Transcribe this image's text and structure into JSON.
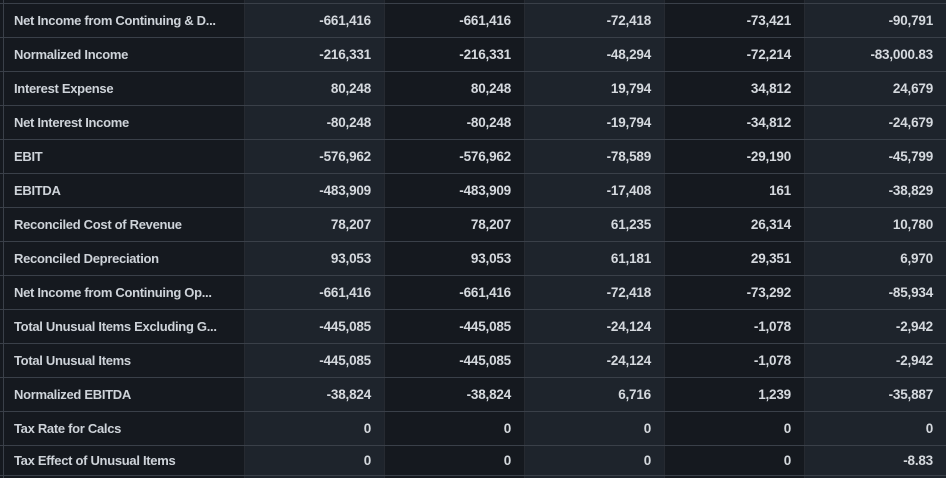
{
  "colors": {
    "background_dark_cell": "#15191f",
    "background_light_cell": "#1e242c",
    "row_border": "#3a4049",
    "column_border": "#262a31",
    "number_text": "#d5d9de",
    "label_text": "#ced3d9"
  },
  "table": {
    "column_count": 5,
    "rows": [
      {
        "label": "Net Income from Continuing & D...",
        "values": [
          "-661,416",
          "-661,416",
          "-72,418",
          "-73,421",
          "-90,791"
        ]
      },
      {
        "label": "Normalized Income",
        "values": [
          "-216,331",
          "-216,331",
          "-48,294",
          "-72,214",
          "-83,000.83"
        ]
      },
      {
        "label": "Interest Expense",
        "values": [
          "80,248",
          "80,248",
          "19,794",
          "34,812",
          "24,679"
        ]
      },
      {
        "label": "Net Interest Income",
        "values": [
          "-80,248",
          "-80,248",
          "-19,794",
          "-34,812",
          "-24,679"
        ]
      },
      {
        "label": "EBIT",
        "values": [
          "-576,962",
          "-576,962",
          "-78,589",
          "-29,190",
          "-45,799"
        ]
      },
      {
        "label": "EBITDA",
        "values": [
          "-483,909",
          "-483,909",
          "-17,408",
          "161",
          "-38,829"
        ]
      },
      {
        "label": "Reconciled Cost of Revenue",
        "values": [
          "78,207",
          "78,207",
          "61,235",
          "26,314",
          "10,780"
        ]
      },
      {
        "label": "Reconciled Depreciation",
        "values": [
          "93,053",
          "93,053",
          "61,181",
          "29,351",
          "6,970"
        ]
      },
      {
        "label": "Net Income from Continuing Op...",
        "values": [
          "-661,416",
          "-661,416",
          "-72,418",
          "-73,292",
          "-85,934"
        ]
      },
      {
        "label": "Total Unusual Items Excluding G...",
        "values": [
          "-445,085",
          "-445,085",
          "-24,124",
          "-1,078",
          "-2,942"
        ]
      },
      {
        "label": "Total Unusual Items",
        "values": [
          "-445,085",
          "-445,085",
          "-24,124",
          "-1,078",
          "-2,942"
        ]
      },
      {
        "label": "Normalized EBITDA",
        "values": [
          "-38,824",
          "-38,824",
          "6,716",
          "1,239",
          "-35,887"
        ]
      },
      {
        "label": "Tax Rate for Calcs",
        "values": [
          "0",
          "0",
          "0",
          "0",
          "0"
        ]
      },
      {
        "label": "Tax Effect of Unusual Items",
        "values": [
          "0",
          "0",
          "0",
          "0",
          "-8.83"
        ]
      }
    ]
  }
}
